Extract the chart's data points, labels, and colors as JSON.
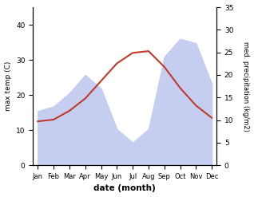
{
  "months": [
    "Jan",
    "Feb",
    "Mar",
    "Apr",
    "May",
    "Jun",
    "Jul",
    "Aug",
    "Sep",
    "Oct",
    "Nov",
    "Dec"
  ],
  "max_temp": [
    12.5,
    13.0,
    15.5,
    19.0,
    24.0,
    29.0,
    32.0,
    32.5,
    28.0,
    22.0,
    17.0,
    13.5
  ],
  "precipitation": [
    12.0,
    13.0,
    16.0,
    20.0,
    17.0,
    8.0,
    5.0,
    8.0,
    24.0,
    28.0,
    27.0,
    18.0
  ],
  "temp_color": "#c0392b",
  "precip_fill_color": "#c5cef0",
  "temp_ylim": [
    0,
    45
  ],
  "precip_ylim": [
    0,
    35
  ],
  "temp_yticks": [
    0,
    10,
    20,
    30,
    40
  ],
  "precip_yticks": [
    0,
    5,
    10,
    15,
    20,
    25,
    30,
    35
  ],
  "ylabel_left": "max temp (C)",
  "ylabel_right": "med. precipitation (kg/m2)",
  "xlabel": "date (month)"
}
